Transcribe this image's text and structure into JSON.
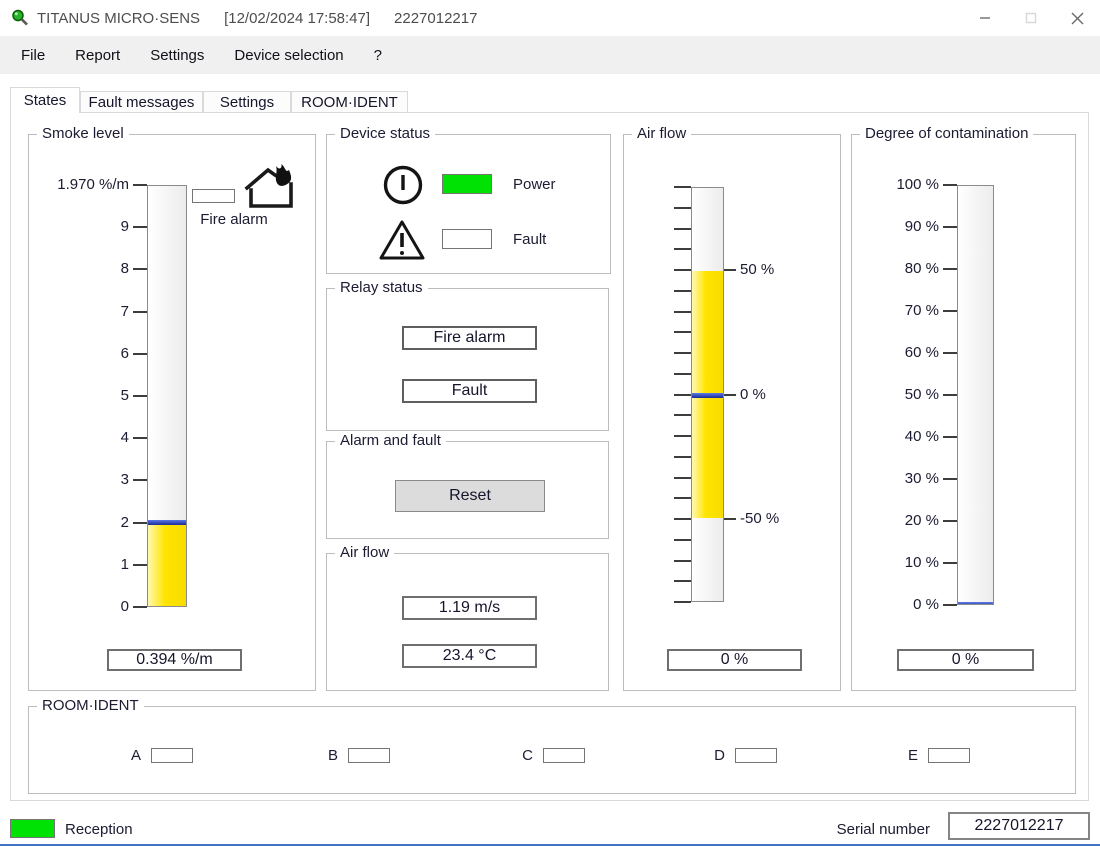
{
  "window": {
    "title": "TITANUS MICRO·SENS",
    "datetime": "[12/02/2024 17:58:47]",
    "device_id": "2227012217"
  },
  "menu": {
    "items": [
      "File",
      "Report",
      "Settings",
      "Device selection",
      "?"
    ]
  },
  "tabs": {
    "items": [
      "States",
      "Fault messages",
      "Settings",
      "ROOM·IDENT"
    ],
    "active": "States"
  },
  "panels": {
    "smoke": {
      "title": "Smoke level",
      "fire_alarm_label": "Fire alarm",
      "value": "0.394 %/m",
      "full_scale": "1.970 %/m"
    },
    "device_status": {
      "title": "Device status",
      "power_label": "Power",
      "fault_label": "Fault",
      "power_on": true,
      "fault_on": false
    },
    "relay_status": {
      "title": "Relay status",
      "fire_alarm_label": "Fire alarm",
      "fault_label": "Fault"
    },
    "alarm_and_fault": {
      "title": "Alarm and fault",
      "reset_label": "Reset"
    },
    "air_flow_values": {
      "title": "Air flow",
      "speed": "1.19 m/s",
      "temperature": "23.4 °C"
    },
    "air_flow_gauge": {
      "title": "Air flow",
      "value": "0 %"
    },
    "contamination": {
      "title": "Degree of contamination",
      "value": "0 %"
    },
    "room_ident": {
      "title": "ROOM·IDENT",
      "channels": [
        "A",
        "B",
        "C",
        "D",
        "E"
      ]
    }
  },
  "statusbar": {
    "reception_label": "Reception",
    "reception_on": true,
    "serial_label": "Serial number",
    "serial_value": "2227012217"
  },
  "gauges": {
    "smoke": {
      "tick_count": 11,
      "left_labels": [
        "1.970 %/m",
        "9",
        "8",
        "7",
        "6",
        "5",
        "4",
        "3",
        "2",
        "1",
        "0"
      ],
      "band": [
        8,
        10
      ],
      "marker_index": 8
    },
    "airflow": {
      "tick_count": 21,
      "right_labels": [
        {
          "index": 4,
          "text": "50 %"
        },
        {
          "index": 10,
          "text": "0 %"
        },
        {
          "index": 16,
          "text": "-50 %"
        }
      ],
      "band": [
        4,
        16
      ],
      "marker_index": 10
    },
    "contamination": {
      "tick_count": 11,
      "left_labels": [
        "100 %",
        "90 %",
        "80 %",
        "70 %",
        "60 %",
        "50 %",
        "40 %",
        "30 %",
        "20 %",
        "10 %",
        "0 %"
      ],
      "band": null,
      "marker_index": 10
    }
  },
  "colors": {
    "status_green": "#00e104",
    "gauge_yellow": "#ffe400",
    "marker_blue": "#2b3fb0",
    "menubar_bg": "#f0f0f0"
  }
}
